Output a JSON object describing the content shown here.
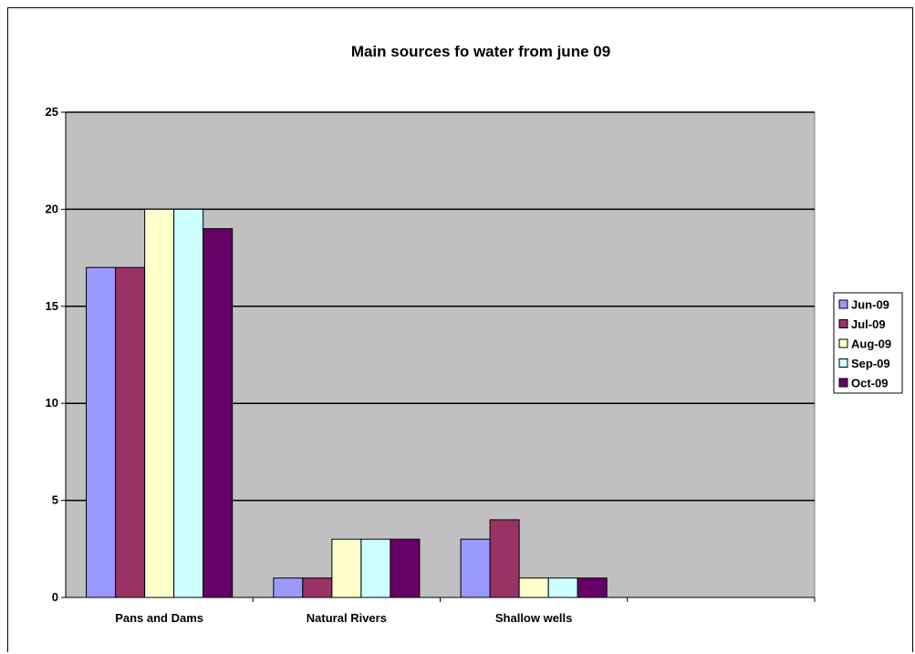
{
  "chart_data": {
    "type": "bar",
    "title": "Main sources fo water from june 09",
    "xlabel": "",
    "ylabel": "",
    "categories": [
      "Pans and Dams",
      "Natural Rivers",
      "Shallow wells",
      ""
    ],
    "series": [
      {
        "name": "Jun-09",
        "values": [
          17,
          1,
          3,
          null
        ],
        "color": "#9999ff"
      },
      {
        "name": "Jul-09",
        "values": [
          17,
          1,
          4,
          null
        ],
        "color": "#993366"
      },
      {
        "name": "Aug-09",
        "values": [
          20,
          3,
          1,
          null
        ],
        "color": "#ffffcc"
      },
      {
        "name": "Sep-09",
        "values": [
          20,
          3,
          1,
          null
        ],
        "color": "#ccffff"
      },
      {
        "name": "Oct-09",
        "values": [
          19,
          3,
          1,
          null
        ],
        "color": "#660066"
      }
    ],
    "ylim": [
      0,
      25
    ],
    "yticks": [
      0,
      5,
      10,
      15,
      20,
      25
    ],
    "grid": true,
    "plot_background": "#c0c0c0",
    "legend_position": "right"
  }
}
